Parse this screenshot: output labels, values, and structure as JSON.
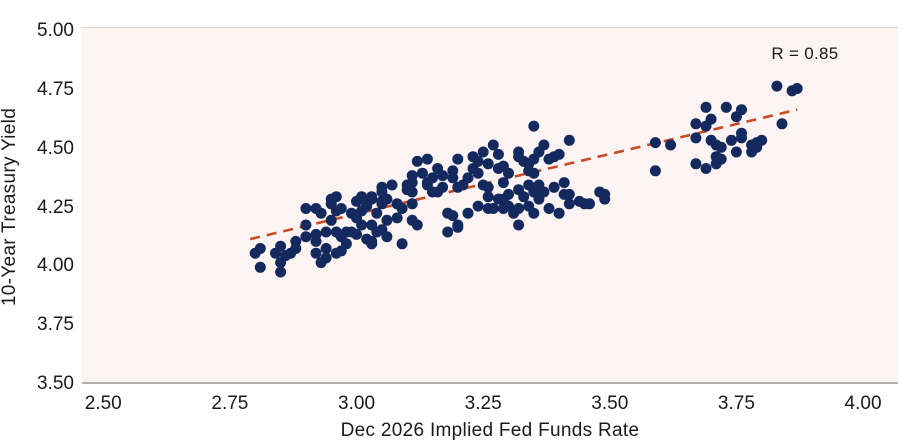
{
  "chart_data": {
    "type": "scatter",
    "title": "",
    "xlabel": "Dec 2026 Implied Fed Funds Rate",
    "ylabel": "10-Year Treasury Yield",
    "annotation": "R = 0.85",
    "xlim": [
      2.458,
      4.069
    ],
    "ylim": [
      3.5,
      5.017
    ],
    "x_ticks": [
      "2.50",
      "2.75",
      "3.00",
      "3.25",
      "3.50",
      "3.75",
      "4.00"
    ],
    "y_ticks": [
      "3.50",
      "3.75",
      "4.00",
      "4.25",
      "4.50",
      "4.75",
      "5.00"
    ],
    "grid": false,
    "legend": "none",
    "trendline": {
      "style": "dashed",
      "x1": 2.79,
      "y1": 4.12,
      "x2": 3.87,
      "y2": 4.67
    },
    "colors": {
      "point": "#14295e",
      "trend": "#c94a23",
      "plot_bg": "#fcf4f3",
      "axis_line": "#b5acab",
      "text": "#1a1a1a"
    },
    "points": [
      [
        2.8,
        4.06
      ],
      [
        2.81,
        4.0
      ],
      [
        2.81,
        4.08
      ],
      [
        2.84,
        4.06
      ],
      [
        2.85,
        3.98
      ],
      [
        2.85,
        4.02
      ],
      [
        2.85,
        4.09
      ],
      [
        2.86,
        4.05
      ],
      [
        2.87,
        4.06
      ],
      [
        2.88,
        4.08
      ],
      [
        2.88,
        4.11
      ],
      [
        2.9,
        4.25
      ],
      [
        2.9,
        4.18
      ],
      [
        2.9,
        4.13
      ],
      [
        2.92,
        4.11
      ],
      [
        2.92,
        4.25
      ],
      [
        2.92,
        4.14
      ],
      [
        2.92,
        4.06
      ],
      [
        2.93,
        4.23
      ],
      [
        2.93,
        4.02
      ],
      [
        2.94,
        4.08
      ],
      [
        2.94,
        4.04
      ],
      [
        2.94,
        4.15
      ],
      [
        2.95,
        4.27
      ],
      [
        2.95,
        4.29
      ],
      [
        2.95,
        4.2
      ],
      [
        2.96,
        4.3
      ],
      [
        2.96,
        4.15
      ],
      [
        2.96,
        4.24
      ],
      [
        2.96,
        4.06
      ],
      [
        2.97,
        4.13
      ],
      [
        2.97,
        4.25
      ],
      [
        2.97,
        4.07
      ],
      [
        2.98,
        4.1
      ],
      [
        2.98,
        4.15
      ],
      [
        2.99,
        4.23
      ],
      [
        2.99,
        4.15
      ],
      [
        3.0,
        4.28
      ],
      [
        3.0,
        4.14
      ],
      [
        3.0,
        4.21
      ],
      [
        3.01,
        4.3
      ],
      [
        3.01,
        4.24
      ],
      [
        3.01,
        4.18
      ],
      [
        3.02,
        4.12
      ],
      [
        3.02,
        4.26
      ],
      [
        3.02,
        4.27
      ],
      [
        3.03,
        4.3
      ],
      [
        3.03,
        4.1
      ],
      [
        3.03,
        4.18
      ],
      [
        3.03,
        4.11
      ],
      [
        3.03,
        4.29
      ],
      [
        3.04,
        4.23
      ],
      [
        3.04,
        4.15
      ],
      [
        3.05,
        4.32
      ],
      [
        3.05,
        4.27
      ],
      [
        3.05,
        4.16
      ],
      [
        3.05,
        4.34
      ],
      [
        3.05,
        4.28
      ],
      [
        3.06,
        4.13
      ],
      [
        3.06,
        4.2
      ],
      [
        3.06,
        4.29
      ],
      [
        3.07,
        4.35
      ],
      [
        3.08,
        4.27
      ],
      [
        3.08,
        4.21
      ],
      [
        3.09,
        4.25
      ],
      [
        3.09,
        4.1
      ],
      [
        3.1,
        4.33
      ],
      [
        3.1,
        4.35
      ],
      [
        3.11,
        4.39
      ],
      [
        3.11,
        4.2
      ],
      [
        3.11,
        4.36
      ],
      [
        3.11,
        4.32
      ],
      [
        3.11,
        4.27
      ],
      [
        3.12,
        4.45
      ],
      [
        3.12,
        4.18
      ],
      [
        3.13,
        4.4
      ],
      [
        3.14,
        4.46
      ],
      [
        3.14,
        4.36
      ],
      [
        3.14,
        4.35
      ],
      [
        3.15,
        4.32
      ],
      [
        3.15,
        4.38
      ],
      [
        3.16,
        4.32
      ],
      [
        3.16,
        4.42
      ],
      [
        3.17,
        4.39
      ],
      [
        3.17,
        4.34
      ],
      [
        3.18,
        4.15
      ],
      [
        3.18,
        4.23
      ],
      [
        3.19,
        4.41
      ],
      [
        3.19,
        4.38
      ],
      [
        3.19,
        4.22
      ],
      [
        3.2,
        4.46
      ],
      [
        3.2,
        4.17
      ],
      [
        3.2,
        4.34
      ],
      [
        3.2,
        4.18
      ],
      [
        3.21,
        4.35
      ],
      [
        3.22,
        4.38
      ],
      [
        3.22,
        4.23
      ],
      [
        3.23,
        4.42
      ],
      [
        3.23,
        4.47
      ],
      [
        3.24,
        4.45
      ],
      [
        3.24,
        4.4
      ],
      [
        3.24,
        4.26
      ],
      [
        3.25,
        4.49
      ],
      [
        3.25,
        4.35
      ],
      [
        3.26,
        4.44
      ],
      [
        3.26,
        4.25
      ],
      [
        3.26,
        4.34
      ],
      [
        3.26,
        4.3
      ],
      [
        3.27,
        4.52
      ],
      [
        3.27,
        4.25
      ],
      [
        3.28,
        4.48
      ],
      [
        3.28,
        4.29
      ],
      [
        3.28,
        4.42
      ],
      [
        3.29,
        4.29
      ],
      [
        3.29,
        4.43
      ],
      [
        3.29,
        4.25
      ],
      [
        3.29,
        4.36
      ],
      [
        3.3,
        4.4
      ],
      [
        3.3,
        4.26
      ],
      [
        3.3,
        4.31
      ],
      [
        3.31,
        4.23
      ],
      [
        3.32,
        4.18
      ],
      [
        3.32,
        4.47
      ],
      [
        3.32,
        4.49
      ],
      [
        3.32,
        4.33
      ],
      [
        3.32,
        4.25
      ],
      [
        3.33,
        4.45
      ],
      [
        3.33,
        4.3
      ],
      [
        3.34,
        4.44
      ],
      [
        3.34,
        4.26
      ],
      [
        3.34,
        4.41
      ],
      [
        3.34,
        4.35
      ],
      [
        3.35,
        4.6
      ],
      [
        3.35,
        4.46
      ],
      [
        3.35,
        4.32
      ],
      [
        3.35,
        4.23
      ],
      [
        3.35,
        4.4
      ],
      [
        3.36,
        4.35
      ],
      [
        3.36,
        4.49
      ],
      [
        3.36,
        4.29
      ],
      [
        3.37,
        4.32
      ],
      [
        3.37,
        4.52
      ],
      [
        3.38,
        4.46
      ],
      [
        3.38,
        4.25
      ],
      [
        3.39,
        4.47
      ],
      [
        3.39,
        4.34
      ],
      [
        3.4,
        4.48
      ],
      [
        3.4,
        4.23
      ],
      [
        3.41,
        4.36
      ],
      [
        3.41,
        4.31
      ],
      [
        3.42,
        4.27
      ],
      [
        3.42,
        4.54
      ],
      [
        3.42,
        4.31
      ],
      [
        3.44,
        4.28
      ],
      [
        3.45,
        4.27
      ],
      [
        3.46,
        4.27
      ],
      [
        3.48,
        4.32
      ],
      [
        3.49,
        4.31
      ],
      [
        3.49,
        4.29
      ],
      [
        3.59,
        4.53
      ],
      [
        3.59,
        4.41
      ],
      [
        3.62,
        4.52
      ],
      [
        3.67,
        4.61
      ],
      [
        3.67,
        4.44
      ],
      [
        3.67,
        4.55
      ],
      [
        3.69,
        4.68
      ],
      [
        3.69,
        4.6
      ],
      [
        3.69,
        4.42
      ],
      [
        3.7,
        4.63
      ],
      [
        3.7,
        4.54
      ],
      [
        3.71,
        4.52
      ],
      [
        3.71,
        4.47
      ],
      [
        3.71,
        4.44
      ],
      [
        3.72,
        4.51
      ],
      [
        3.72,
        4.46
      ],
      [
        3.73,
        4.68
      ],
      [
        3.74,
        4.54
      ],
      [
        3.75,
        4.64
      ],
      [
        3.75,
        4.49
      ],
      [
        3.76,
        4.67
      ],
      [
        3.76,
        4.57
      ],
      [
        3.76,
        4.55
      ],
      [
        3.78,
        4.52
      ],
      [
        3.78,
        4.49
      ],
      [
        3.79,
        4.51
      ],
      [
        3.79,
        4.53
      ],
      [
        3.8,
        4.54
      ],
      [
        3.83,
        4.77
      ],
      [
        3.84,
        4.61
      ],
      [
        3.86,
        4.75
      ],
      [
        3.87,
        4.76
      ]
    ]
  }
}
